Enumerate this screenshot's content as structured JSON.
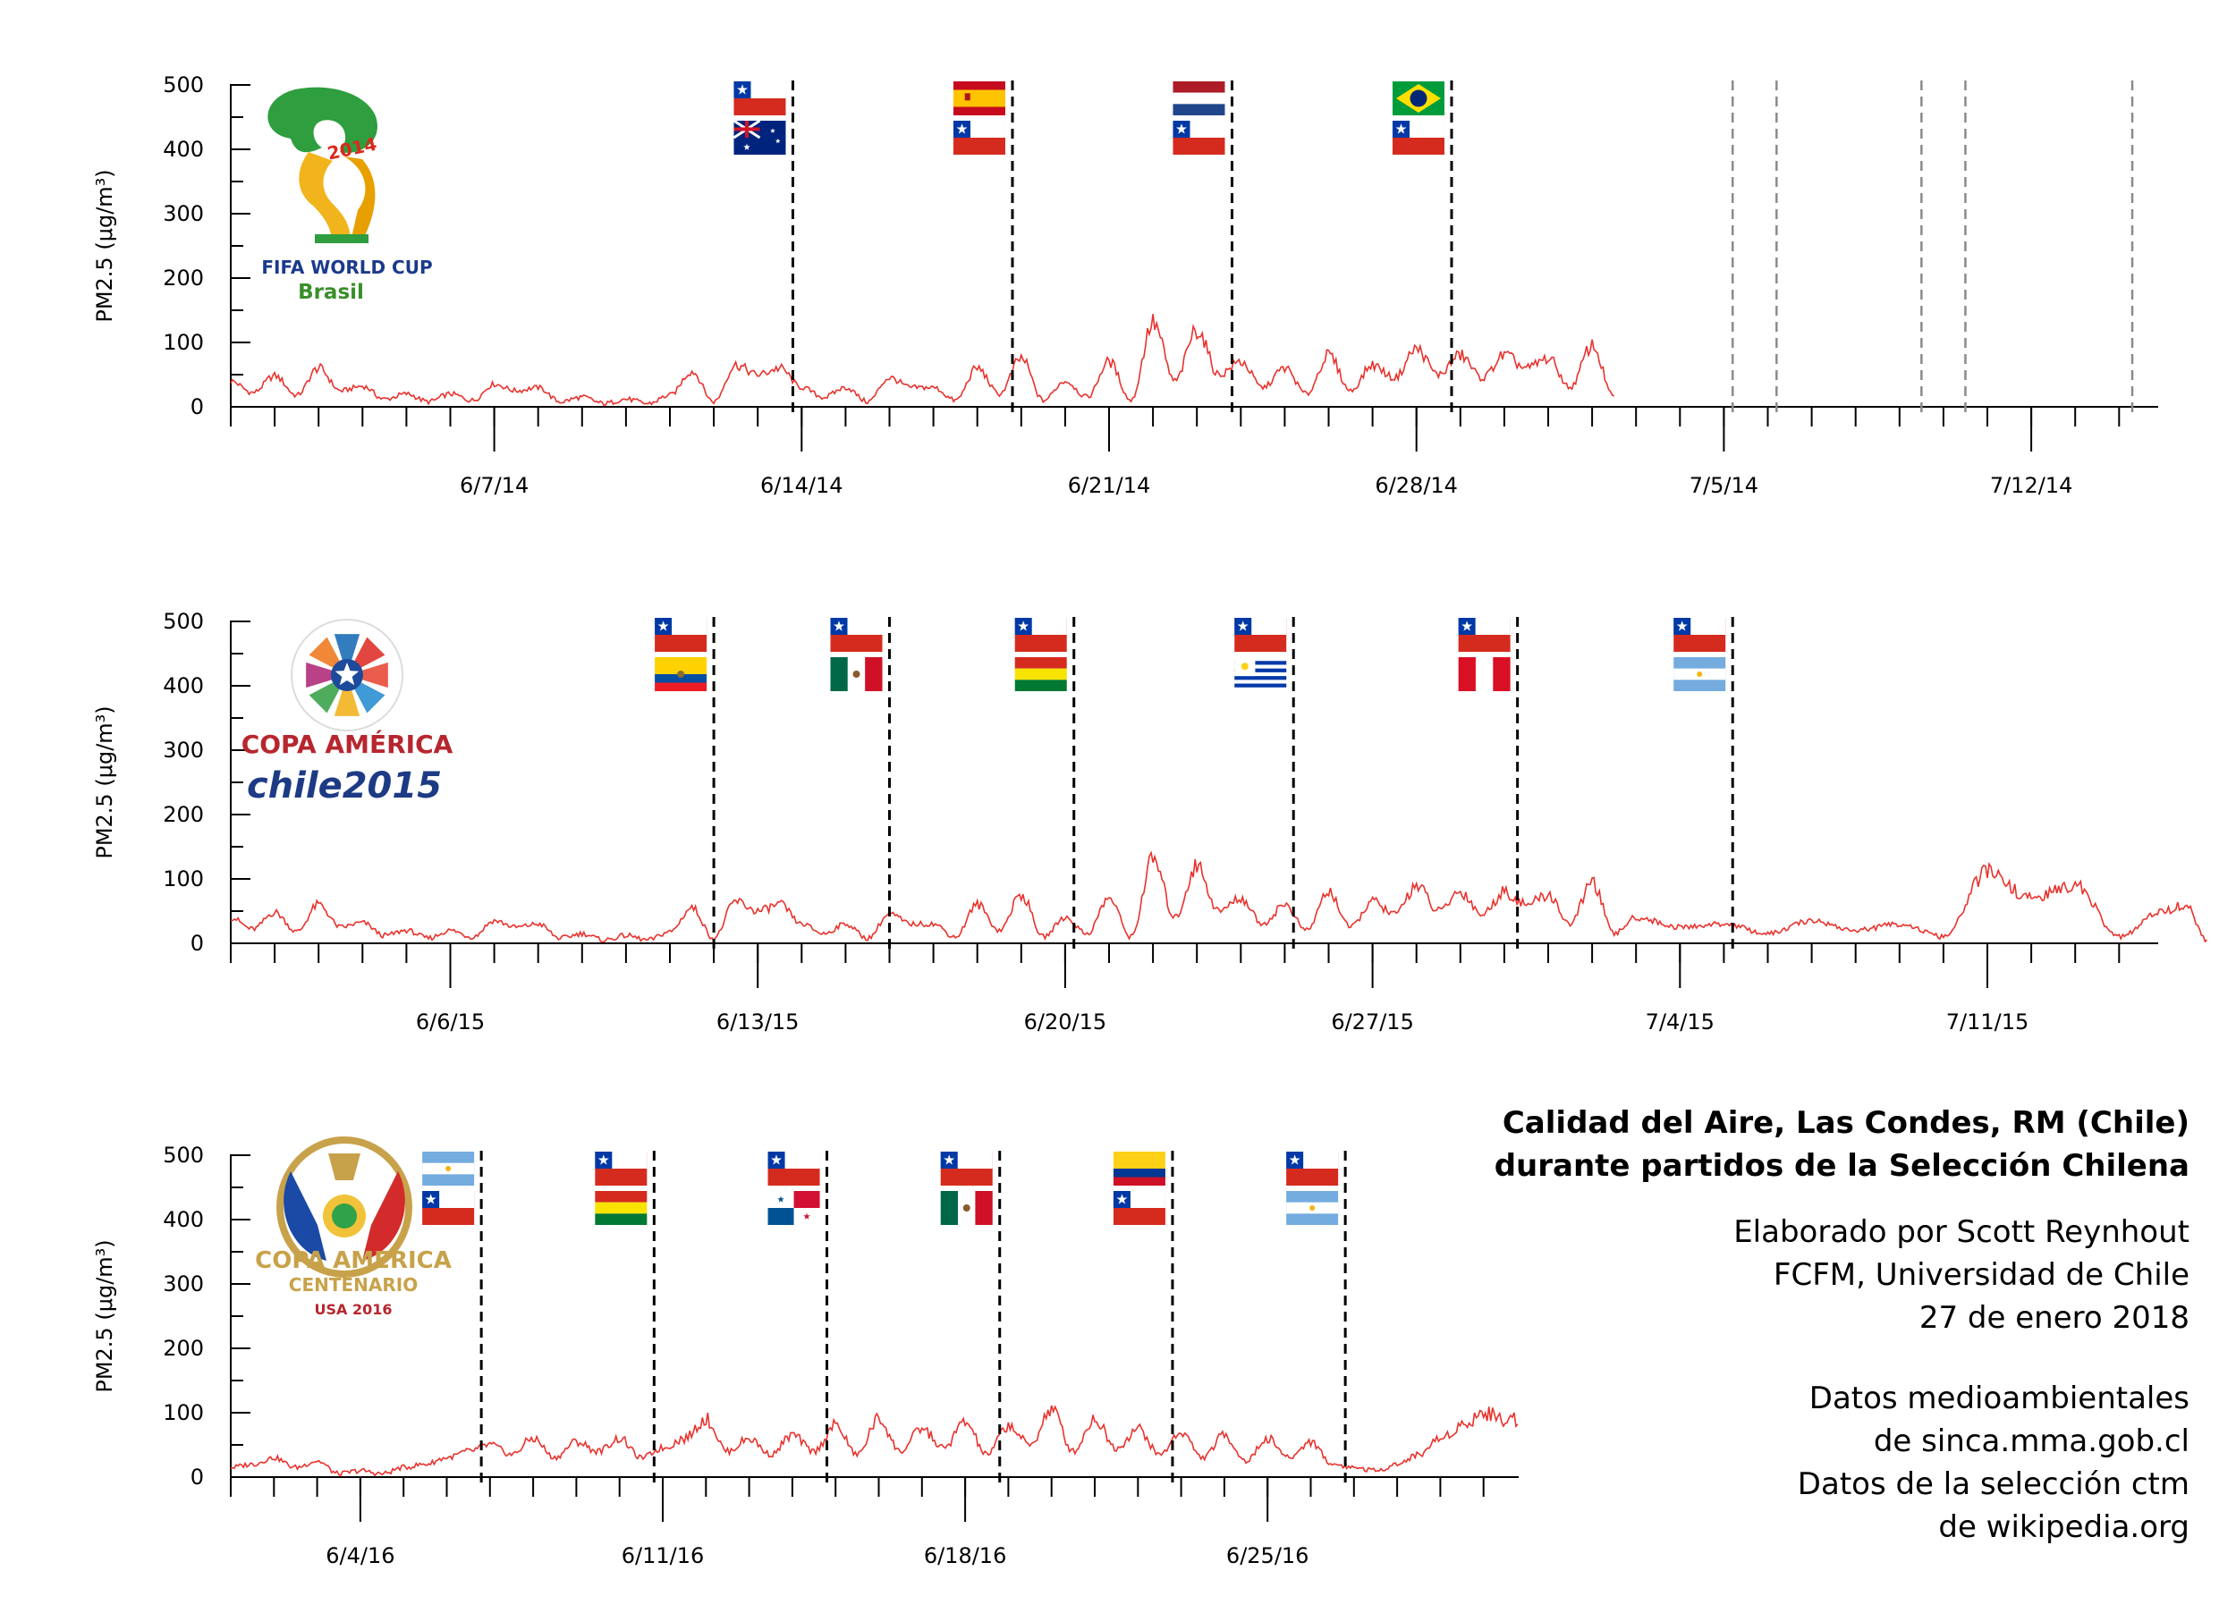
{
  "info": {
    "title_line1": "Calidad del Aire, Las Condes, RM (Chile)",
    "title_line2": "durante partidos de la Selección Chilena",
    "credit_line1": "Elaborado por Scott Reynhout",
    "credit_line2": "FCFM, Universidad de Chile",
    "credit_line3": "27 de enero 2018",
    "source_line1": "Datos medioambientales",
    "source_line2": "de sinca.mma.gob.cl",
    "source_line3": "Datos de la selección ctm",
    "source_line4": "de wikipedia.org"
  },
  "colors": {
    "series": "#e8322d",
    "match_line": "#000000",
    "other_match_line": "#8a8a8a",
    "chile_red": "#d52b1e",
    "chile_blue": "#0039a6"
  },
  "chart_data": [
    {
      "type": "line",
      "tournament": "world-cup-2014",
      "logo": {
        "line1": "FIFA WORLD CUP",
        "line2": "Brasil",
        "badge": "2014"
      },
      "ylabel": "PM2.5 (μg/m³)",
      "ylim": [
        0,
        500
      ],
      "yticks": [
        0,
        100,
        200,
        300,
        400,
        500
      ],
      "start_day": 0,
      "x_days": 31.5,
      "xticks": [
        {
          "day": 6,
          "label": "6/7/14"
        },
        {
          "day": 13,
          "label": "6/14/14"
        },
        {
          "day": 20,
          "label": "6/21/14"
        },
        {
          "day": 27,
          "label": "6/28/14"
        },
        {
          "day": 34,
          "label": "7/5/14"
        },
        {
          "day": 41,
          "label": "7/12/14"
        }
      ],
      "pm25_keypoints": [
        [
          0,
          40
        ],
        [
          0.5,
          22
        ],
        [
          1,
          48
        ],
        [
          1.5,
          18
        ],
        [
          2,
          60
        ],
        [
          2.5,
          25
        ],
        [
          3,
          32
        ],
        [
          3.5,
          12
        ],
        [
          4,
          20
        ],
        [
          4.5,
          8
        ],
        [
          5,
          20
        ],
        [
          5.5,
          10
        ],
        [
          6,
          35
        ],
        [
          6.5,
          25
        ],
        [
          7,
          30
        ],
        [
          7.5,
          8
        ],
        [
          8,
          15
        ],
        [
          8.5,
          5
        ],
        [
          9,
          12
        ],
        [
          9.5,
          5
        ],
        [
          10,
          18
        ],
        [
          10.5,
          55
        ],
        [
          11,
          8
        ],
        [
          11.5,
          65
        ],
        [
          12,
          50
        ],
        [
          12.5,
          60
        ],
        [
          13,
          30
        ],
        [
          13.5,
          15
        ],
        [
          14,
          30
        ],
        [
          14.5,
          8
        ],
        [
          15,
          45
        ],
        [
          15.5,
          30
        ],
        [
          16,
          30
        ],
        [
          16.5,
          10
        ],
        [
          17,
          60
        ],
        [
          17.5,
          20
        ],
        [
          18,
          75
        ],
        [
          18.5,
          10
        ],
        [
          19,
          40
        ],
        [
          19.5,
          15
        ],
        [
          20,
          70
        ],
        [
          20.5,
          10
        ],
        [
          21,
          130
        ],
        [
          21.5,
          40
        ],
        [
          22,
          120
        ],
        [
          22.5,
          50
        ],
        [
          23,
          70
        ],
        [
          23.5,
          30
        ],
        [
          24,
          60
        ],
        [
          24.5,
          20
        ],
        [
          25,
          80
        ],
        [
          25.5,
          25
        ],
        [
          26,
          65
        ],
        [
          26.5,
          45
        ],
        [
          27,
          90
        ],
        [
          27.5,
          50
        ],
        [
          28,
          80
        ],
        [
          28.5,
          45
        ],
        [
          29,
          80
        ],
        [
          29.5,
          60
        ],
        [
          30,
          75
        ],
        [
          30.5,
          30
        ],
        [
          31,
          95
        ],
        [
          31.5,
          15
        ]
      ],
      "matches": [
        {
          "day": 12.8,
          "flags": [
            "chile",
            "australia"
          ],
          "chile": true
        },
        {
          "day": 17.8,
          "flags": [
            "spain",
            "chile"
          ],
          "chile": true
        },
        {
          "day": 22.8,
          "flags": [
            "netherlands",
            "chile"
          ],
          "chile": true
        },
        {
          "day": 27.8,
          "flags": [
            "brazil",
            "chile"
          ],
          "chile": true
        },
        {
          "day": 34.2,
          "flags": [],
          "chile": false
        },
        {
          "day": 35.2,
          "flags": [],
          "chile": false
        },
        {
          "day": 38.5,
          "flags": [],
          "chile": false
        },
        {
          "day": 39.5,
          "flags": [],
          "chile": false
        },
        {
          "day": 43.3,
          "flags": [],
          "chile": false
        }
      ]
    },
    {
      "type": "line",
      "tournament": "copa-america-2015",
      "logo": {
        "line1": "COPA AMÉRICA",
        "line2": "chile2015"
      },
      "ylabel": "PM2.5 (μg/m³)",
      "ylim": [
        0,
        500
      ],
      "yticks": [
        0,
        100,
        200,
        300,
        400,
        500
      ],
      "start_day": 0,
      "xticks": [
        {
          "day": 5,
          "label": "6/6/15"
        },
        {
          "day": 12,
          "label": "6/13/15"
        },
        {
          "day": 19,
          "label": "6/20/15"
        },
        {
          "day": 26,
          "label": "6/27/15"
        },
        {
          "day": 33,
          "label": "7/4/15"
        },
        {
          "day": 40,
          "label": "7/11/15"
        }
      ],
      "pm25_keypoints": [
        [
          0,
          40
        ],
        [
          0.5,
          22
        ],
        [
          1,
          48
        ],
        [
          1.5,
          18
        ],
        [
          2,
          60
        ],
        [
          2.5,
          25
        ],
        [
          3,
          32
        ],
        [
          3.5,
          12
        ],
        [
          4,
          20
        ],
        [
          4.5,
          8
        ],
        [
          5,
          20
        ],
        [
          5.5,
          10
        ],
        [
          6,
          35
        ],
        [
          6.5,
          25
        ],
        [
          7,
          30
        ],
        [
          7.5,
          8
        ],
        [
          8,
          15
        ],
        [
          8.5,
          5
        ],
        [
          9,
          12
        ],
        [
          9.5,
          5
        ],
        [
          10,
          18
        ],
        [
          10.5,
          55
        ],
        [
          11,
          8
        ],
        [
          11.5,
          65
        ],
        [
          12,
          50
        ],
        [
          12.5,
          60
        ],
        [
          13,
          30
        ],
        [
          13.5,
          15
        ],
        [
          14,
          30
        ],
        [
          14.5,
          8
        ],
        [
          15,
          45
        ],
        [
          15.5,
          30
        ],
        [
          16,
          30
        ],
        [
          16.5,
          10
        ],
        [
          17,
          60
        ],
        [
          17.5,
          20
        ],
        [
          18,
          75
        ],
        [
          18.5,
          10
        ],
        [
          19,
          40
        ],
        [
          19.5,
          15
        ],
        [
          20,
          70
        ],
        [
          20.5,
          10
        ],
        [
          21,
          130
        ],
        [
          21.5,
          40
        ],
        [
          22,
          120
        ],
        [
          22.5,
          50
        ],
        [
          23,
          70
        ],
        [
          23.5,
          30
        ],
        [
          24,
          60
        ],
        [
          24.5,
          20
        ],
        [
          25,
          80
        ],
        [
          25.5,
          25
        ],
        [
          26,
          65
        ],
        [
          26.5,
          45
        ],
        [
          27,
          90
        ],
        [
          27.5,
          50
        ],
        [
          28,
          80
        ],
        [
          28.5,
          45
        ],
        [
          29,
          80
        ],
        [
          29.5,
          60
        ],
        [
          30,
          75
        ],
        [
          30.5,
          30
        ],
        [
          31,
          95
        ],
        [
          31.5,
          15
        ],
        [
          32,
          40
        ],
        [
          33,
          25
        ],
        [
          34,
          30
        ],
        [
          35,
          15
        ],
        [
          36,
          35
        ],
        [
          37,
          20
        ],
        [
          38,
          30
        ],
        [
          39,
          10
        ],
        [
          40,
          110
        ],
        [
          41,
          70
        ],
        [
          42,
          90
        ],
        [
          43,
          10
        ],
        [
          44,
          50
        ],
        [
          44.5,
          60
        ],
        [
          45,
          5
        ]
      ],
      "matches": [
        {
          "day": 11,
          "flags": [
            "chile",
            "ecuador"
          ],
          "chile": true
        },
        {
          "day": 15,
          "flags": [
            "chile",
            "mexico"
          ],
          "chile": true
        },
        {
          "day": 19.2,
          "flags": [
            "chile",
            "bolivia"
          ],
          "chile": true
        },
        {
          "day": 24.2,
          "flags": [
            "chile",
            "uruguay"
          ],
          "chile": true
        },
        {
          "day": 29.3,
          "flags": [
            "chile",
            "peru"
          ],
          "chile": true
        },
        {
          "day": 34.2,
          "flags": [
            "chile",
            "argentina"
          ],
          "chile": true
        }
      ]
    },
    {
      "type": "line",
      "tournament": "copa-america-centenario-2016",
      "logo": {
        "line1": "COPA AMERICA",
        "line2": "CENTENARIO",
        "line3": "USA 2016"
      },
      "ylabel": "PM2.5 (μg/m³)",
      "ylim": [
        0,
        500
      ],
      "yticks": [
        0,
        100,
        200,
        300,
        400,
        500
      ],
      "start_day": 0,
      "xticks": [
        {
          "day": 3,
          "label": "6/4/16"
        },
        {
          "day": 10,
          "label": "6/11/16"
        },
        {
          "day": 17,
          "label": "6/18/16"
        },
        {
          "day": 24,
          "label": "6/25/16"
        }
      ],
      "pm25_keypoints": [
        [
          0,
          15
        ],
        [
          0.5,
          20
        ],
        [
          1,
          30
        ],
        [
          1.5,
          15
        ],
        [
          2,
          25
        ],
        [
          2.5,
          5
        ],
        [
          3,
          10
        ],
        [
          3.5,
          5
        ],
        [
          4,
          15
        ],
        [
          4.5,
          20
        ],
        [
          5,
          30
        ],
        [
          5.5,
          40
        ],
        [
          6,
          50
        ],
        [
          6.5,
          35
        ],
        [
          7,
          60
        ],
        [
          7.5,
          30
        ],
        [
          8,
          55
        ],
        [
          8.5,
          40
        ],
        [
          9,
          60
        ],
        [
          9.5,
          30
        ],
        [
          10,
          45
        ],
        [
          10.5,
          60
        ],
        [
          11,
          90
        ],
        [
          11.5,
          40
        ],
        [
          12,
          60
        ],
        [
          12.5,
          35
        ],
        [
          13,
          65
        ],
        [
          13.5,
          40
        ],
        [
          14,
          80
        ],
        [
          14.5,
          35
        ],
        [
          15,
          90
        ],
        [
          15.5,
          40
        ],
        [
          16,
          75
        ],
        [
          16.5,
          45
        ],
        [
          17,
          85
        ],
        [
          17.5,
          35
        ],
        [
          18,
          80
        ],
        [
          18.5,
          50
        ],
        [
          19,
          105
        ],
        [
          19.5,
          40
        ],
        [
          20,
          90
        ],
        [
          20.5,
          45
        ],
        [
          21,
          75
        ],
        [
          21.5,
          35
        ],
        [
          22,
          70
        ],
        [
          22.5,
          30
        ],
        [
          23,
          65
        ],
        [
          23.5,
          25
        ],
        [
          24,
          60
        ],
        [
          24.5,
          30
        ],
        [
          25,
          55
        ],
        [
          25.5,
          20
        ],
        [
          26,
          15
        ],
        [
          26.5,
          10
        ],
        [
          27,
          20
        ],
        [
          27.5,
          35
        ],
        [
          28,
          60
        ],
        [
          28.5,
          80
        ],
        [
          29,
          100
        ],
        [
          29.5,
          90
        ]
      ],
      "matches": [
        {
          "day": 5.8,
          "flags": [
            "argentina",
            "chile"
          ],
          "chile": true
        },
        {
          "day": 9.8,
          "flags": [
            "chile",
            "bolivia"
          ],
          "chile": true
        },
        {
          "day": 13.8,
          "flags": [
            "chile",
            "panama"
          ],
          "chile": true
        },
        {
          "day": 17.8,
          "flags": [
            "chile",
            "mexico"
          ],
          "chile": true
        },
        {
          "day": 21.8,
          "flags": [
            "colombia",
            "chile"
          ],
          "chile": true
        },
        {
          "day": 25.8,
          "flags": [
            "chile",
            "argentina"
          ],
          "chile": true
        }
      ]
    }
  ]
}
